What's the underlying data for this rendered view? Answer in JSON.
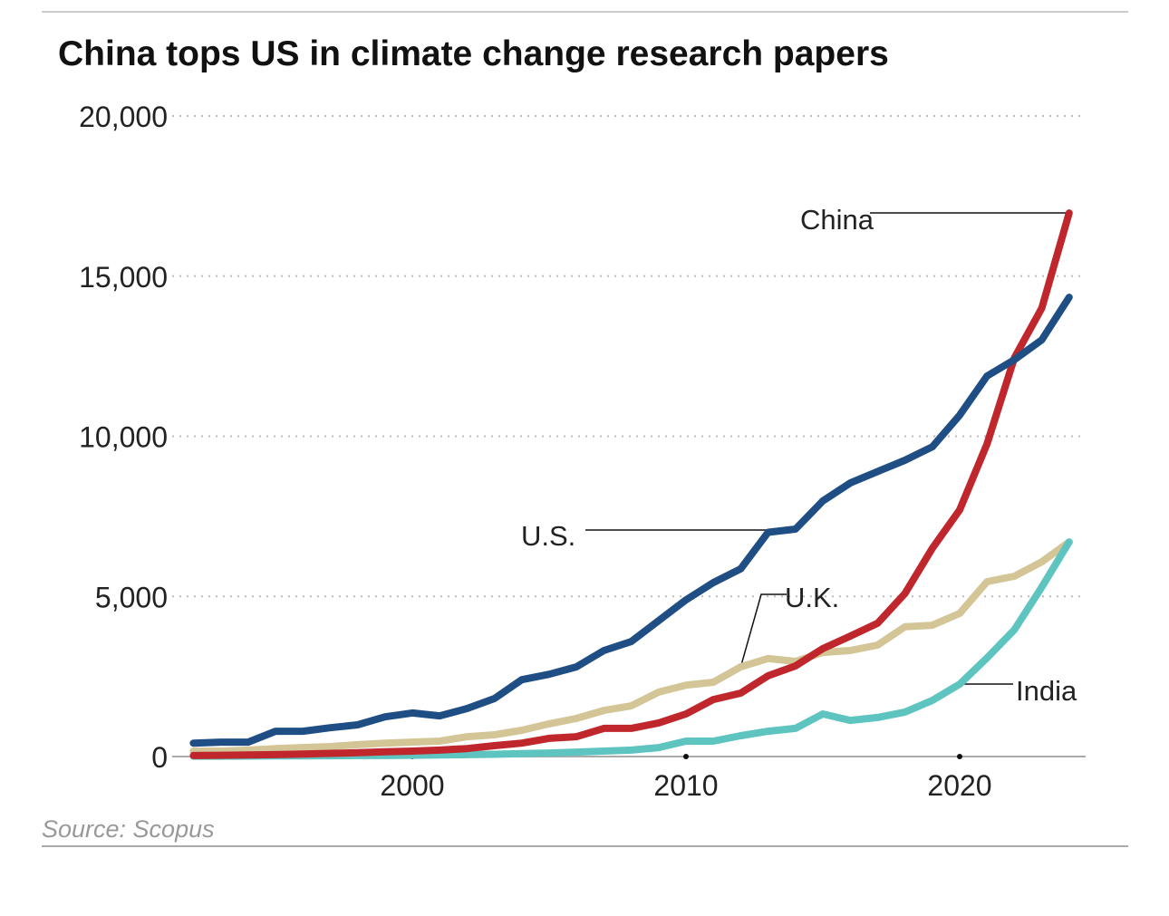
{
  "chart_data": {
    "type": "line",
    "title": "China tops US in climate change research papers",
    "source": "Source: Scopus",
    "xlabel": "",
    "ylabel": "",
    "xlim": [
      1992,
      2024
    ],
    "ylim": [
      0,
      20000
    ],
    "grid": true,
    "x_ticks": [
      2000,
      2010,
      2020
    ],
    "x_tick_labels": [
      "2000",
      "2010",
      "2020"
    ],
    "y_ticks": [
      0,
      5000,
      10000,
      15000,
      20000
    ],
    "y_tick_labels": [
      "0",
      "5,000",
      "10,000",
      "15,000",
      "20,000"
    ],
    "x": [
      1992,
      1993,
      1994,
      1995,
      1996,
      1997,
      1998,
      1999,
      2000,
      2001,
      2002,
      2003,
      2004,
      2005,
      2006,
      2007,
      2008,
      2009,
      2010,
      2011,
      2012,
      2013,
      2014,
      2015,
      2016,
      2017,
      2018,
      2019,
      2020,
      2021,
      2022,
      2023,
      2024
    ],
    "series": [
      {
        "name": "U.S.",
        "color": "#1f4e85",
        "values": [
          420,
          450,
          450,
          790,
          790,
          900,
          990,
          1240,
          1360,
          1270,
          1500,
          1810,
          2400,
          2570,
          2800,
          3310,
          3590,
          4240,
          4890,
          5430,
          5860,
          7000,
          7100,
          7980,
          8540,
          8900,
          9250,
          9670,
          10660,
          11880,
          12390,
          13010,
          14340
        ]
      },
      {
        "name": "China",
        "color": "#c0272d",
        "values": [
          30,
          40,
          50,
          60,
          80,
          100,
          120,
          150,
          170,
          200,
          250,
          340,
          420,
          570,
          620,
          880,
          880,
          1050,
          1330,
          1780,
          1980,
          2520,
          2830,
          3370,
          3760,
          4160,
          5090,
          6500,
          7700,
          9760,
          12450,
          14000,
          16970
        ]
      },
      {
        "name": "U.K.",
        "color": "#d4c597",
        "values": [
          170,
          170,
          200,
          250,
          280,
          310,
          370,
          420,
          450,
          480,
          620,
          680,
          820,
          1020,
          1190,
          1440,
          1580,
          2010,
          2230,
          2320,
          2800,
          3060,
          2970,
          3250,
          3310,
          3480,
          4050,
          4100,
          4470,
          5460,
          5630,
          6080,
          6700
        ]
      },
      {
        "name": "India",
        "color": "#5ec4c0",
        "values": [
          10,
          10,
          15,
          20,
          20,
          25,
          30,
          30,
          40,
          50,
          60,
          70,
          90,
          110,
          140,
          170,
          200,
          280,
          480,
          480,
          650,
          790,
          880,
          1330,
          1130,
          1220,
          1390,
          1750,
          2260,
          3080,
          3960,
          5290,
          6700
        ]
      }
    ],
    "legend_placement": "direct labels"
  }
}
